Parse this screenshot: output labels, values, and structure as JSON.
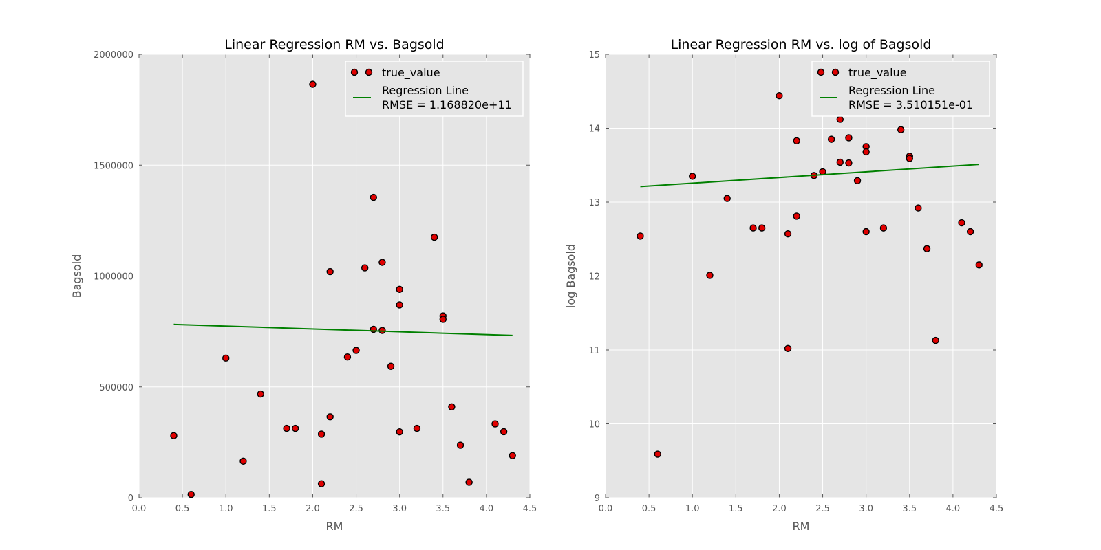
{
  "colors": {
    "plot_background": "#e5e5e5",
    "grid": "#ffffff",
    "marker_fill": "#e00000",
    "marker_edge": "#000000",
    "regression_line": "#008000",
    "legend_background": "#e5e5e5",
    "legend_border": "#ffffff"
  },
  "chart_data": [
    {
      "type": "scatter",
      "title": "Linear Regression RM vs. Bagsold",
      "xlabel": "RM",
      "ylabel": "Bagsold",
      "xlim": [
        0,
        4.5
      ],
      "ylim": [
        0,
        2000000
      ],
      "xticks": [
        0,
        0.5,
        1,
        1.5,
        2,
        2.5,
        3,
        3.5,
        4,
        4.5
      ],
      "xtick_labels": [
        "0.0",
        "0.5",
        "1.0",
        "1.5",
        "2.0",
        "2.5",
        "3.0",
        "3.5",
        "4.0",
        "4.5"
      ],
      "yticks": [
        0,
        500000,
        1000000,
        1500000,
        2000000
      ],
      "ytick_labels": [
        "0",
        "500000",
        "1000000",
        "1500000",
        "2000000"
      ],
      "grid": true,
      "legend_position": "top-right",
      "series": [
        {
          "name": "true_value",
          "kind": "scatter",
          "points": [
            [
              0.4,
              280000
            ],
            [
              0.6,
              15000
            ],
            [
              1.0,
              630000
            ],
            [
              1.2,
              165000
            ],
            [
              1.4,
              468000
            ],
            [
              1.7,
              313000
            ],
            [
              1.8,
              313000
            ],
            [
              2.0,
              1865000
            ],
            [
              2.1,
              287000
            ],
            [
              2.1,
              63000
            ],
            [
              2.2,
              1020000
            ],
            [
              2.2,
              365000
            ],
            [
              2.4,
              635000
            ],
            [
              2.5,
              665000
            ],
            [
              2.6,
              1037000
            ],
            [
              2.7,
              1355000
            ],
            [
              2.7,
              760000
            ],
            [
              2.8,
              1062000
            ],
            [
              2.8,
              755000
            ],
            [
              2.9,
              593000
            ],
            [
              3.0,
              940000
            ],
            [
              3.0,
              870000
            ],
            [
              3.0,
              297000
            ],
            [
              3.2,
              313000
            ],
            [
              3.4,
              1175000
            ],
            [
              3.5,
              820000
            ],
            [
              3.5,
              805000
            ],
            [
              3.6,
              410000
            ],
            [
              3.7,
              237000
            ],
            [
              3.8,
              70000
            ],
            [
              4.1,
              333000
            ],
            [
              4.2,
              298000
            ],
            [
              4.3,
              190000
            ]
          ]
        },
        {
          "name": "Regression Line",
          "legend_extra": "RMSE = 1.168820e+11",
          "kind": "line",
          "points": [
            [
              0.4,
              782000
            ],
            [
              4.3,
              732000
            ]
          ]
        }
      ]
    },
    {
      "type": "scatter",
      "title": "Linear Regression RM vs. log of Bagsold",
      "xlabel": "RM",
      "ylabel": "log Bagsold",
      "xlim": [
        0,
        4.5
      ],
      "ylim": [
        9,
        15
      ],
      "xticks": [
        0,
        0.5,
        1,
        1.5,
        2,
        2.5,
        3,
        3.5,
        4,
        4.5
      ],
      "xtick_labels": [
        "0.0",
        "0.5",
        "1.0",
        "1.5",
        "2.0",
        "2.5",
        "3.0",
        "3.5",
        "4.0",
        "4.5"
      ],
      "yticks": [
        9,
        10,
        11,
        12,
        13,
        14,
        15
      ],
      "ytick_labels": [
        "9",
        "10",
        "11",
        "12",
        "13",
        "14",
        "15"
      ],
      "grid": true,
      "legend_position": "top-right",
      "series": [
        {
          "name": "true_value",
          "kind": "scatter",
          "points": [
            [
              0.4,
              12.54
            ],
            [
              0.6,
              9.59
            ],
            [
              1.0,
              13.35
            ],
            [
              1.2,
              12.01
            ],
            [
              1.4,
              13.05
            ],
            [
              1.7,
              12.65
            ],
            [
              1.8,
              12.65
            ],
            [
              2.0,
              14.44
            ],
            [
              2.1,
              12.57
            ],
            [
              2.1,
              11.02
            ],
            [
              2.2,
              13.83
            ],
            [
              2.2,
              12.81
            ],
            [
              2.4,
              13.36
            ],
            [
              2.5,
              13.41
            ],
            [
              2.6,
              13.85
            ],
            [
              2.7,
              14.12
            ],
            [
              2.7,
              13.54
            ],
            [
              2.8,
              13.87
            ],
            [
              2.8,
              13.53
            ],
            [
              2.9,
              13.29
            ],
            [
              3.0,
              13.75
            ],
            [
              3.0,
              13.68
            ],
            [
              3.0,
              12.6
            ],
            [
              3.2,
              12.65
            ],
            [
              3.4,
              13.98
            ],
            [
              3.5,
              13.62
            ],
            [
              3.5,
              13.59
            ],
            [
              3.6,
              12.92
            ],
            [
              3.7,
              12.37
            ],
            [
              3.8,
              11.13
            ],
            [
              4.1,
              12.72
            ],
            [
              4.2,
              12.6
            ],
            [
              4.3,
              12.15
            ]
          ]
        },
        {
          "name": "Regression Line",
          "legend_extra": "RMSE = 3.510151e-01",
          "kind": "line",
          "points": [
            [
              0.4,
              13.21
            ],
            [
              4.3,
              13.51
            ]
          ]
        }
      ]
    }
  ]
}
